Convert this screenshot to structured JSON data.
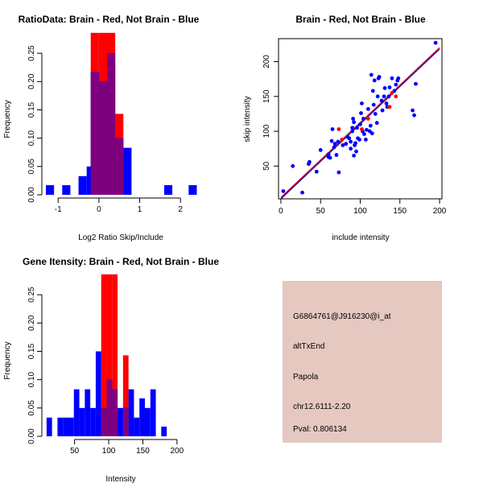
{
  "colors": {
    "red": "#ff0000",
    "blue": "#0000ff",
    "overlap": "#7f007f",
    "panel_bg": "#e5c8c0",
    "pval": "#8b0000",
    "fit_line_red": "#d9002b",
    "fit_line_blue": "#10108f"
  },
  "chart_data": [
    {
      "type": "histogram-overlay",
      "title": "RatioData: Brain - Red, Not Brain - Blue",
      "xlabel": "Log2 Ratio Skip/Include",
      "ylabel": "Frequency",
      "xlim": [
        -1.3,
        2.45
      ],
      "ylim": [
        0,
        0.29
      ],
      "xticks": [
        -1,
        0,
        1,
        2
      ],
      "yticks": [
        0.0,
        0.05,
        0.1,
        0.15,
        0.2,
        0.25
      ],
      "ytick_labels": [
        "0.00",
        "0.05",
        "0.10",
        "0.15",
        "0.20",
        "0.25"
      ],
      "bin_width": 0.2,
      "series": [
        {
          "name": "Brain",
          "color": "red",
          "bins": [
            [
              -0.2,
              0.286
            ],
            [
              0.0,
              0.286
            ],
            [
              0.2,
              0.286
            ],
            [
              0.4,
              0.143
            ]
          ]
        },
        {
          "name": "Not Brain",
          "color": "blue",
          "bins": [
            [
              -1.3,
              0.017
            ],
            [
              -0.9,
              0.017
            ],
            [
              -0.5,
              0.033
            ],
            [
              -0.3,
              0.05
            ],
            [
              -0.2,
              0.217
            ],
            [
              0.0,
              0.2
            ],
            [
              0.2,
              0.25
            ],
            [
              0.4,
              0.1
            ],
            [
              0.6,
              0.083
            ],
            [
              1.6,
              0.017
            ],
            [
              2.2,
              0.017
            ]
          ]
        }
      ]
    },
    {
      "type": "scatter",
      "title": "Brain - Red, Not Brain - Blue",
      "xlabel": "include intensity",
      "ylabel": "skip intensity",
      "xlim": [
        -3,
        203
      ],
      "ylim": [
        3,
        233
      ],
      "xticks": [
        0,
        50,
        100,
        150,
        200
      ],
      "yticks": [
        50,
        100,
        150,
        200
      ],
      "fit_red": [
        [
          0,
          5
        ],
        [
          200,
          220
        ]
      ],
      "fit_blue": [
        [
          0,
          3
        ],
        [
          200,
          218
        ]
      ],
      "series": [
        {
          "name": "Not Brain",
          "color": "blue",
          "points": [
            [
              3,
              14
            ],
            [
              15,
              50
            ],
            [
              27,
              12
            ],
            [
              35,
              53
            ],
            [
              36,
              56
            ],
            [
              45,
              42
            ],
            [
              50,
              73
            ],
            [
              60,
              63
            ],
            [
              60,
              67
            ],
            [
              62,
              62
            ],
            [
              64,
              86
            ],
            [
              65,
              103
            ],
            [
              67,
              77
            ],
            [
              68,
              82
            ],
            [
              70,
              66
            ],
            [
              72,
              85
            ],
            [
              73,
              41
            ],
            [
              78,
              80
            ],
            [
              82,
              82
            ],
            [
              84,
              92
            ],
            [
              86,
              90
            ],
            [
              88,
              75
            ],
            [
              88,
              85
            ],
            [
              90,
              100
            ],
            [
              90,
              105
            ],
            [
              91,
              118
            ],
            [
              92,
              65
            ],
            [
              92,
              113
            ],
            [
              93,
              80
            ],
            [
              94,
              83
            ],
            [
              95,
              71
            ],
            [
              96,
              105
            ],
            [
              97,
              90
            ],
            [
              99,
              88
            ],
            [
              100,
              110
            ],
            [
              101,
              126
            ],
            [
              102,
              140
            ],
            [
              103,
              100
            ],
            [
              104,
              118
            ],
            [
              105,
              96
            ],
            [
              107,
              88
            ],
            [
              108,
              102
            ],
            [
              110,
              132
            ],
            [
              112,
              100
            ],
            [
              113,
              108
            ],
            [
              114,
              181
            ],
            [
              115,
              97
            ],
            [
              116,
              158
            ],
            [
              117,
              138
            ],
            [
              118,
              173
            ],
            [
              119,
              125
            ],
            [
              121,
              112
            ],
            [
              122,
              150
            ],
            [
              123,
              176
            ],
            [
              124,
              178
            ],
            [
              127,
              144
            ],
            [
              128,
              130
            ],
            [
              130,
              150
            ],
            [
              131,
              162
            ],
            [
              133,
              140
            ],
            [
              134,
              135
            ],
            [
              136,
              150
            ],
            [
              137,
              163
            ],
            [
              140,
              176
            ],
            [
              143,
              158
            ],
            [
              145,
              167
            ],
            [
              147,
              173
            ],
            [
              148,
              176
            ],
            [
              166,
              130
            ],
            [
              168,
              123
            ],
            [
              170,
              168
            ],
            [
              195,
              227
            ]
          ]
        },
        {
          "name": "Brain",
          "color": "red",
          "points": [
            [
              73,
              103
            ],
            [
              77,
              88
            ],
            [
              102,
              103
            ],
            [
              110,
              118
            ],
            [
              137,
              135
            ],
            [
              140,
              155
            ],
            [
              145,
              150
            ]
          ]
        }
      ]
    },
    {
      "type": "histogram-overlay",
      "title": "Gene Itensity: Brain - Red, Not Brain - Blue",
      "xlabel": "Intensity",
      "ylabel": "Frequency",
      "xlim": [
        8,
        232
      ],
      "ylim": [
        0,
        0.29
      ],
      "xticks": [
        50,
        100,
        150,
        200
      ],
      "yticks": [
        0.0,
        0.05,
        0.1,
        0.15,
        0.2,
        0.25
      ],
      "ytick_labels": [
        "0.00",
        "0.05",
        "0.10",
        "0.15",
        "0.20",
        "0.25"
      ],
      "bin_width": 8,
      "series": [
        {
          "name": "Brain",
          "color": "red",
          "bins": [
            [
              89,
              0.286
            ],
            [
              97,
              0.286
            ],
            [
              105,
              0.286
            ],
            [
              121,
              0.143
            ]
          ]
        },
        {
          "name": "Not Brain",
          "color": "blue",
          "bins": [
            [
              9,
              0.033
            ],
            [
              25,
              0.033
            ],
            [
              33,
              0.033
            ],
            [
              41,
              0.033
            ],
            [
              49,
              0.083
            ],
            [
              57,
              0.05
            ],
            [
              65,
              0.083
            ],
            [
              73,
              0.05
            ],
            [
              81,
              0.15
            ],
            [
              89,
              0.05
            ],
            [
              97,
              0.1
            ],
            [
              105,
              0.083
            ],
            [
              113,
              0.05
            ],
            [
              121,
              0.05
            ],
            [
              129,
              0.083
            ],
            [
              137,
              0.033
            ],
            [
              145,
              0.067
            ],
            [
              153,
              0.05
            ],
            [
              161,
              0.083
            ],
            [
              177,
              0.017
            ]
          ]
        }
      ]
    }
  ],
  "info_panel": {
    "probe_id": "G6864761@J916230@i_at",
    "event_type": "altTxEnd",
    "gene": "Papola",
    "location": "chr12.6111-2.20",
    "pval": "Pval: 0.806134"
  }
}
